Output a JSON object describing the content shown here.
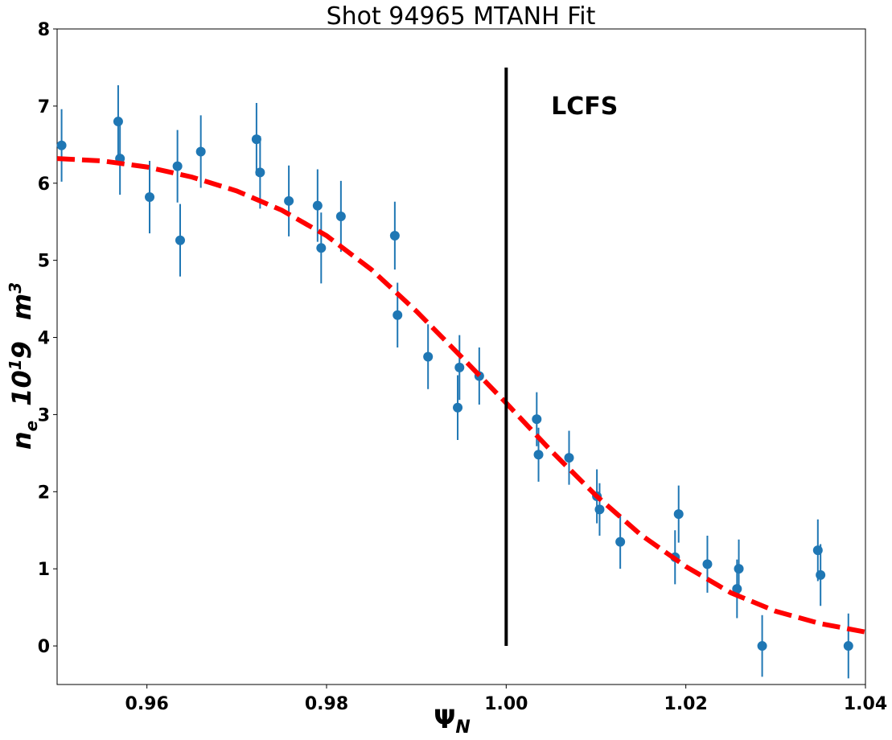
{
  "chart_data": {
    "type": "scatter",
    "title": "Shot 94965 MTANH Fit",
    "xlabel_main": "Ψ",
    "xlabel_sub": "N",
    "ylabel_parts": {
      "a": "n",
      "a_sub": "e",
      "b": "10",
      "b_sup": "1",
      "c": "9",
      "d": "m",
      "d_sup": "3"
    },
    "xlim": [
      0.95,
      1.04
    ],
    "ylim": [
      -0.5,
      8
    ],
    "xticks": [
      0.96,
      0.98,
      1.0,
      1.02,
      1.04
    ],
    "xtick_labels": [
      "0.96",
      "0.98",
      "1.00",
      "1.02",
      "1.04"
    ],
    "yticks": [
      0,
      1,
      2,
      3,
      4,
      5,
      6,
      7,
      8
    ],
    "ytick_labels": [
      "0",
      "1",
      "2",
      "3",
      "4",
      "5",
      "6",
      "7",
      "8"
    ],
    "grid": false,
    "annotation": {
      "text": "LCFS",
      "x": 1.005,
      "y": 7.0
    },
    "lcfs_line": {
      "x": 1.0,
      "y_from": 0,
      "y_to": 7.5,
      "color": "#000000"
    },
    "point_color": "#1f77b4",
    "fit_color": "#ff0000",
    "points": [
      {
        "x": 0.9505,
        "y": 6.49,
        "err": 0.47
      },
      {
        "x": 0.9568,
        "y": 6.8,
        "err": 0.47
      },
      {
        "x": 0.957,
        "y": 6.32,
        "err": 0.47
      },
      {
        "x": 0.9603,
        "y": 5.82,
        "err": 0.47
      },
      {
        "x": 0.9634,
        "y": 6.22,
        "err": 0.47
      },
      {
        "x": 0.9637,
        "y": 5.26,
        "err": 0.47
      },
      {
        "x": 0.966,
        "y": 6.41,
        "err": 0.47
      },
      {
        "x": 0.9722,
        "y": 6.57,
        "err": 0.47
      },
      {
        "x": 0.9726,
        "y": 6.14,
        "err": 0.47
      },
      {
        "x": 0.9758,
        "y": 5.77,
        "err": 0.46
      },
      {
        "x": 0.979,
        "y": 5.71,
        "err": 0.47
      },
      {
        "x": 0.9794,
        "y": 5.16,
        "err": 0.46
      },
      {
        "x": 0.9816,
        "y": 5.57,
        "err": 0.46
      },
      {
        "x": 0.9876,
        "y": 5.32,
        "err": 0.44
      },
      {
        "x": 0.9879,
        "y": 4.29,
        "err": 0.42
      },
      {
        "x": 0.9913,
        "y": 3.75,
        "err": 0.42
      },
      {
        "x": 0.9946,
        "y": 3.09,
        "err": 0.42
      },
      {
        "x": 0.9948,
        "y": 3.61,
        "err": 0.42
      },
      {
        "x": 0.997,
        "y": 3.5,
        "err": 0.37
      },
      {
        "x": 1.0034,
        "y": 2.94,
        "err": 0.35
      },
      {
        "x": 1.0036,
        "y": 2.48,
        "err": 0.35
      },
      {
        "x": 1.007,
        "y": 2.44,
        "err": 0.35
      },
      {
        "x": 1.0101,
        "y": 1.94,
        "err": 0.35
      },
      {
        "x": 1.0104,
        "y": 1.77,
        "err": 0.34
      },
      {
        "x": 1.0127,
        "y": 1.35,
        "err": 0.35
      },
      {
        "x": 1.0188,
        "y": 1.15,
        "err": 0.35
      },
      {
        "x": 1.0192,
        "y": 1.71,
        "err": 0.37
      },
      {
        "x": 1.0224,
        "y": 1.06,
        "err": 0.37
      },
      {
        "x": 1.0257,
        "y": 0.74,
        "err": 0.38
      },
      {
        "x": 1.0259,
        "y": 1.0,
        "err": 0.38
      },
      {
        "x": 1.0285,
        "y": 0.0,
        "err": 0.4
      },
      {
        "x": 1.0347,
        "y": 1.24,
        "err": 0.4
      },
      {
        "x": 1.035,
        "y": 0.92,
        "err": 0.4
      },
      {
        "x": 1.0381,
        "y": 0.0,
        "err": 0.42
      }
    ],
    "fit_line": [
      [
        0.95,
        6.32
      ],
      [
        0.955,
        6.29
      ],
      [
        0.96,
        6.21
      ],
      [
        0.965,
        6.08
      ],
      [
        0.97,
        5.9
      ],
      [
        0.975,
        5.65
      ],
      [
        0.98,
        5.32
      ],
      [
        0.985,
        4.88
      ],
      [
        0.99,
        4.34
      ],
      [
        0.995,
        3.75
      ],
      [
        1.0,
        3.15
      ],
      [
        1.005,
        2.53
      ],
      [
        1.01,
        1.95
      ],
      [
        1.015,
        1.44
      ],
      [
        1.02,
        1.03
      ],
      [
        1.025,
        0.69
      ],
      [
        1.03,
        0.45
      ],
      [
        1.035,
        0.29
      ],
      [
        1.04,
        0.18
      ]
    ]
  }
}
